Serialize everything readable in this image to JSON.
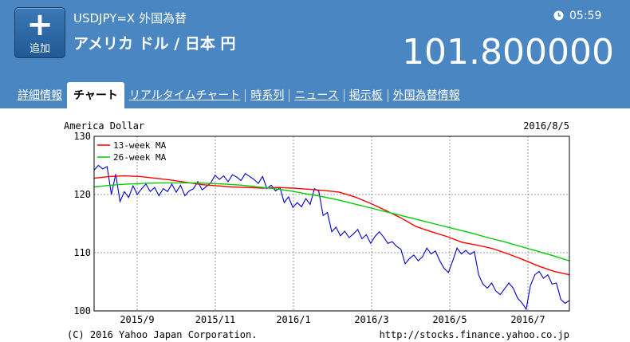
{
  "header": {
    "add_button": {
      "icon": "plus-icon",
      "label": "追加"
    },
    "symbol": "USDJPY=X  外国為替",
    "name": "アメリカ ドル / 日本 円",
    "time_icon": "clock-icon",
    "time": "05:59",
    "price": "101.800000"
  },
  "tabs": [
    {
      "label": "詳細情報",
      "active": false
    },
    {
      "label": "チャート",
      "active": true
    },
    {
      "label": "リアルタイムチャート",
      "active": false
    },
    {
      "label": "時系列",
      "active": false
    },
    {
      "label": "ニュース",
      "active": false
    },
    {
      "label": "掲示板",
      "active": false
    },
    {
      "label": "外国為替情報",
      "active": false
    }
  ],
  "chart_data": {
    "type": "line",
    "title": "America Dollar",
    "date": "2016/8/5",
    "copyright": "(C) 2016 Yahoo Japan Corporation.",
    "url": "http://stocks.finance.yahoo.co.jp",
    "ylim": [
      100,
      130
    ],
    "yticks": [
      100,
      110,
      120,
      130
    ],
    "xticks": [
      "2015/9",
      "2015/11",
      "2016/1",
      "2016/3",
      "2016/5",
      "2016/7"
    ],
    "legend": [
      "13-week MA",
      "26-week MA"
    ],
    "series": [
      {
        "name": "price",
        "color": "#0000cc",
        "values": [
          124.2,
          125.0,
          124.4,
          124.8,
          120.0,
          123.5,
          118.8,
          120.5,
          119.5,
          121.5,
          120.0,
          121.0,
          121.8,
          120.5,
          121.2,
          119.8,
          121.0,
          120.5,
          121.8,
          120.4,
          121.6,
          119.8,
          120.6,
          121.0,
          122.2,
          120.8,
          121.4,
          122.0,
          123.3,
          122.6,
          123.2,
          122.2,
          123.4,
          123.0,
          122.4,
          123.6,
          123.1,
          122.6,
          121.9,
          123.1,
          121.0,
          121.6,
          120.6,
          121.2,
          118.6,
          119.6,
          117.8,
          118.6,
          117.9,
          119.3,
          118.3,
          121.0,
          120.6,
          116.4,
          116.9,
          113.6,
          114.4,
          112.9,
          113.7,
          112.6,
          113.2,
          114.0,
          112.4,
          113.1,
          111.6,
          112.8,
          113.6,
          112.7,
          111.6,
          111.9,
          111.1,
          110.6,
          108.1,
          109.0,
          109.6,
          108.6,
          109.3,
          110.8,
          109.8,
          110.3,
          108.6,
          107.3,
          106.6,
          108.6,
          110.8,
          109.8,
          110.4,
          109.7,
          110.2,
          106.2,
          104.6,
          103.9,
          104.8,
          103.4,
          102.8,
          103.8,
          104.8,
          103.9,
          102.2,
          101.4,
          100.3,
          104.4,
          106.2,
          106.8,
          105.6,
          106.2,
          104.6,
          104.8,
          102.0,
          101.3,
          101.8
        ]
      },
      {
        "name": "13-week MA",
        "color": "#ff0000",
        "values": [
          122.8,
          123.1,
          123.2,
          123.1,
          122.8,
          122.5,
          122.1,
          121.7,
          121.5,
          121.3,
          121.2,
          121.1,
          121.2,
          121.1,
          120.9,
          120.7,
          120.4,
          119.6,
          118.5,
          117.3,
          116.0,
          114.5,
          113.6,
          112.8,
          111.8,
          111.3,
          110.7,
          109.8,
          108.8,
          107.7,
          106.8,
          106.2
        ]
      },
      {
        "name": "26-week MA",
        "color": "#00cc00",
        "values": [
          121.3,
          121.6,
          121.8,
          121.9,
          122.0,
          122.0,
          122.0,
          121.9,
          121.8,
          121.6,
          121.3,
          121.0,
          120.6,
          120.1,
          119.6,
          119.0,
          118.3,
          117.6,
          116.9,
          116.2,
          115.5,
          114.8,
          114.1,
          113.4,
          112.6,
          111.9,
          111.1,
          110.3,
          109.5,
          108.6
        ]
      }
    ]
  },
  "colors": {
    "header_bg": "#4a86c1",
    "price_line": "#0000cc",
    "ma13": "#ff0000",
    "ma26": "#00cc00"
  }
}
